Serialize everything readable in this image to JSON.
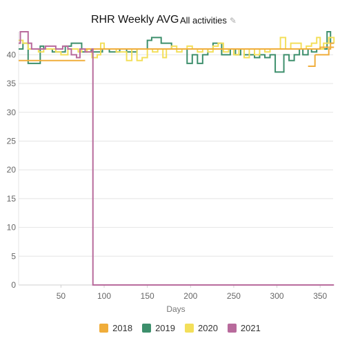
{
  "header": {
    "title": "RHR Weekly AVG",
    "filter_label": "All activities",
    "filter_icon": "pencil-icon"
  },
  "chart_data": {
    "type": "line",
    "title": "RHR Weekly AVG",
    "xlabel": "Days",
    "ylabel": "",
    "xlim": [
      1,
      365
    ],
    "ylim": [
      0,
      44
    ],
    "xticks": [
      50,
      100,
      150,
      200,
      250,
      300,
      350
    ],
    "yticks": [
      0,
      5,
      10,
      15,
      20,
      25,
      30,
      35,
      40
    ],
    "grid": true,
    "legend_position": "bottom",
    "series": [
      {
        "name": "2018",
        "color": "#f0ad3a",
        "x": [
          1,
          78,
          79,
          366
        ],
        "y": [
          39,
          39,
          41,
          41
        ],
        "segments": [
          {
            "x": [
              1,
              78
            ],
            "y": [
              39,
              39
            ]
          },
          {
            "x": [
              78,
              82,
              90,
              100,
              150,
              200,
              250,
              300,
              350,
              366
            ],
            "y": [
              41,
              41,
              41,
              41,
              41,
              41,
              41,
              41,
              41.3,
              41.3
            ]
          },
          {
            "x": [
              336,
              338,
              342,
              344
            ],
            "y": [
              38,
              38,
              38,
              40
            ]
          },
          {
            "x": [
              344,
              350,
              352,
              360,
              362,
              366
            ],
            "y": [
              40,
              40,
              40,
              41,
              42,
              42
            ]
          }
        ]
      },
      {
        "name": "2019",
        "color": "#3d8f6c",
        "points": [
          [
            1,
            41
          ],
          [
            6,
            42
          ],
          [
            12,
            38.5
          ],
          [
            18,
            38.5
          ],
          [
            26,
            41.5
          ],
          [
            30,
            41
          ],
          [
            40,
            40.5
          ],
          [
            48,
            40.5
          ],
          [
            55,
            41.5
          ],
          [
            62,
            42
          ],
          [
            68,
            42
          ],
          [
            74,
            40.5
          ],
          [
            80,
            41
          ],
          [
            85,
            40.5
          ],
          [
            92,
            40.5
          ],
          [
            98,
            41
          ],
          [
            106,
            40.5
          ],
          [
            112,
            40.5
          ],
          [
            118,
            41
          ],
          [
            126,
            40.5
          ],
          [
            132,
            40.5
          ],
          [
            138,
            41
          ],
          [
            144,
            41
          ],
          [
            150,
            42.5
          ],
          [
            155,
            43
          ],
          [
            160,
            43
          ],
          [
            166,
            42
          ],
          [
            172,
            42
          ],
          [
            178,
            41
          ],
          [
            184,
            41
          ],
          [
            190,
            41
          ],
          [
            196,
            38.5
          ],
          [
            202,
            40
          ],
          [
            208,
            38.5
          ],
          [
            214,
            40
          ],
          [
            220,
            41
          ],
          [
            226,
            42
          ],
          [
            232,
            42
          ],
          [
            236,
            40
          ],
          [
            242,
            40
          ],
          [
            246,
            41
          ],
          [
            252,
            40
          ],
          [
            258,
            41
          ],
          [
            262,
            40
          ],
          [
            268,
            40
          ],
          [
            274,
            39.5
          ],
          [
            280,
            40
          ],
          [
            286,
            39.5
          ],
          [
            292,
            40
          ],
          [
            298,
            37
          ],
          [
            304,
            37
          ],
          [
            308,
            40
          ],
          [
            314,
            39
          ],
          [
            320,
            40
          ],
          [
            326,
            41
          ],
          [
            330,
            40
          ],
          [
            336,
            41
          ],
          [
            340,
            40.5
          ],
          [
            346,
            41
          ],
          [
            352,
            41
          ],
          [
            358,
            44
          ],
          [
            362,
            42
          ],
          [
            366,
            42
          ]
        ]
      },
      {
        "name": "2020",
        "color": "#f3df5a",
        "points": [
          [
            1,
            42.5
          ],
          [
            6,
            42
          ],
          [
            12,
            41
          ],
          [
            18,
            41
          ],
          [
            24,
            40.5
          ],
          [
            30,
            41
          ],
          [
            38,
            41
          ],
          [
            44,
            40.5
          ],
          [
            50,
            40
          ],
          [
            58,
            41
          ],
          [
            64,
            41
          ],
          [
            70,
            40.5
          ],
          [
            74,
            41
          ],
          [
            80,
            40.5
          ],
          [
            86,
            39.5
          ],
          [
            92,
            40
          ],
          [
            96,
            42
          ],
          [
            100,
            41
          ],
          [
            108,
            41
          ],
          [
            114,
            40.5
          ],
          [
            120,
            40.5
          ],
          [
            126,
            39
          ],
          [
            132,
            41
          ],
          [
            138,
            39
          ],
          [
            144,
            39.5
          ],
          [
            150,
            41
          ],
          [
            156,
            40.5
          ],
          [
            162,
            41
          ],
          [
            168,
            39.5
          ],
          [
            172,
            41
          ],
          [
            178,
            41.5
          ],
          [
            184,
            40.5
          ],
          [
            190,
            41
          ],
          [
            196,
            41.5
          ],
          [
            202,
            41
          ],
          [
            208,
            40.5
          ],
          [
            214,
            41
          ],
          [
            220,
            40.5
          ],
          [
            226,
            41.5
          ],
          [
            232,
            42
          ],
          [
            238,
            40.5
          ],
          [
            244,
            41
          ],
          [
            250,
            40
          ],
          [
            256,
            41
          ],
          [
            262,
            39.5
          ],
          [
            268,
            41
          ],
          [
            274,
            40
          ],
          [
            280,
            41
          ],
          [
            286,
            40.5
          ],
          [
            292,
            41
          ],
          [
            298,
            41
          ],
          [
            304,
            43
          ],
          [
            310,
            41
          ],
          [
            316,
            42
          ],
          [
            322,
            42
          ],
          [
            328,
            41
          ],
          [
            334,
            41.5
          ],
          [
            340,
            42
          ],
          [
            346,
            43
          ],
          [
            350,
            41
          ],
          [
            354,
            42
          ],
          [
            360,
            43
          ],
          [
            366,
            42
          ]
        ]
      },
      {
        "name": "2021",
        "color": "#b86a9c",
        "points": [
          [
            1,
            42
          ],
          [
            3,
            44
          ],
          [
            8,
            44
          ],
          [
            12,
            42
          ],
          [
            16,
            41
          ],
          [
            20,
            41
          ],
          [
            26,
            41
          ],
          [
            32,
            41.5
          ],
          [
            38,
            41.5
          ],
          [
            44,
            41
          ],
          [
            52,
            41.5
          ],
          [
            58,
            41
          ],
          [
            62,
            40
          ],
          [
            68,
            39.5
          ],
          [
            72,
            41
          ],
          [
            78,
            40.5
          ],
          [
            84,
            40.5
          ],
          [
            86,
            41
          ],
          [
            87,
            0
          ],
          [
            366,
            0
          ]
        ]
      }
    ]
  }
}
